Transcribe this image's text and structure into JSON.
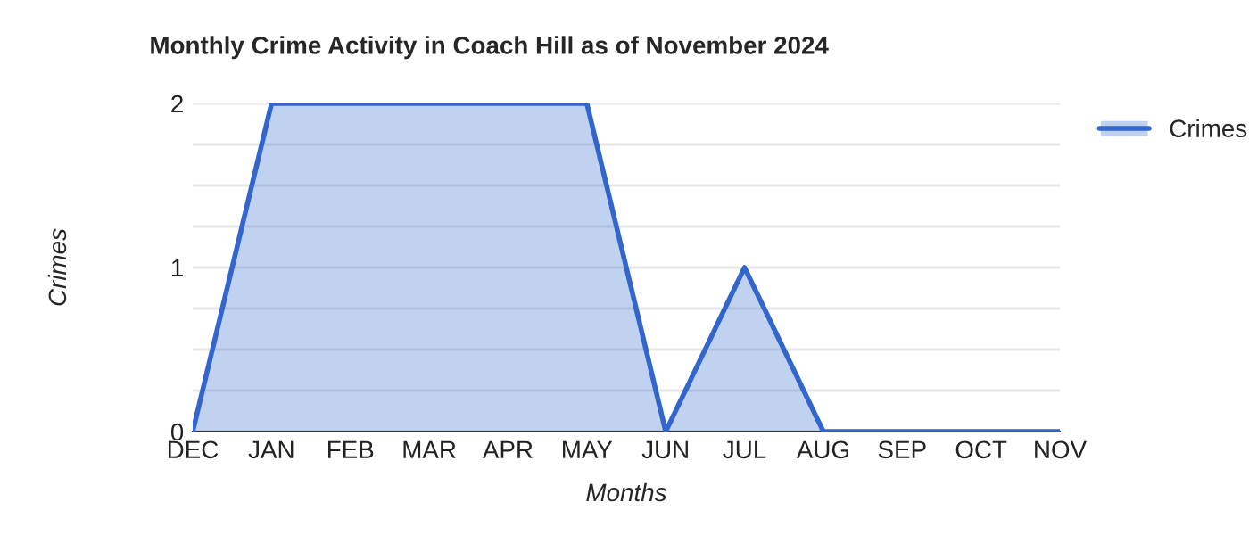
{
  "chart_data": {
    "type": "area",
    "title": "Monthly Crime Activity in Coach Hill as of November 2024",
    "xlabel": "Months",
    "ylabel": "Crimes",
    "categories": [
      "DEC",
      "JAN",
      "FEB",
      "MAR",
      "APR",
      "MAY",
      "JUN",
      "JUL",
      "AUG",
      "SEP",
      "OCT",
      "NOV"
    ],
    "series": [
      {
        "name": "Crimes",
        "color": "#3366cc",
        "values": [
          0,
          2,
          2,
          2,
          2,
          2,
          0,
          1,
          0,
          0,
          0,
          0
        ]
      }
    ],
    "ylim": [
      0,
      2
    ],
    "yticks": [
      0,
      {
        "value": 0.25,
        "label": null
      },
      {
        "value": 0.5,
        "label": null
      },
      {
        "value": 0.75,
        "label": null
      },
      1,
      {
        "value": 1.25,
        "label": null
      },
      {
        "value": 1.5,
        "label": null
      },
      {
        "value": 1.75,
        "label": null
      },
      2
    ],
    "grid": "y",
    "legend": "top right"
  }
}
